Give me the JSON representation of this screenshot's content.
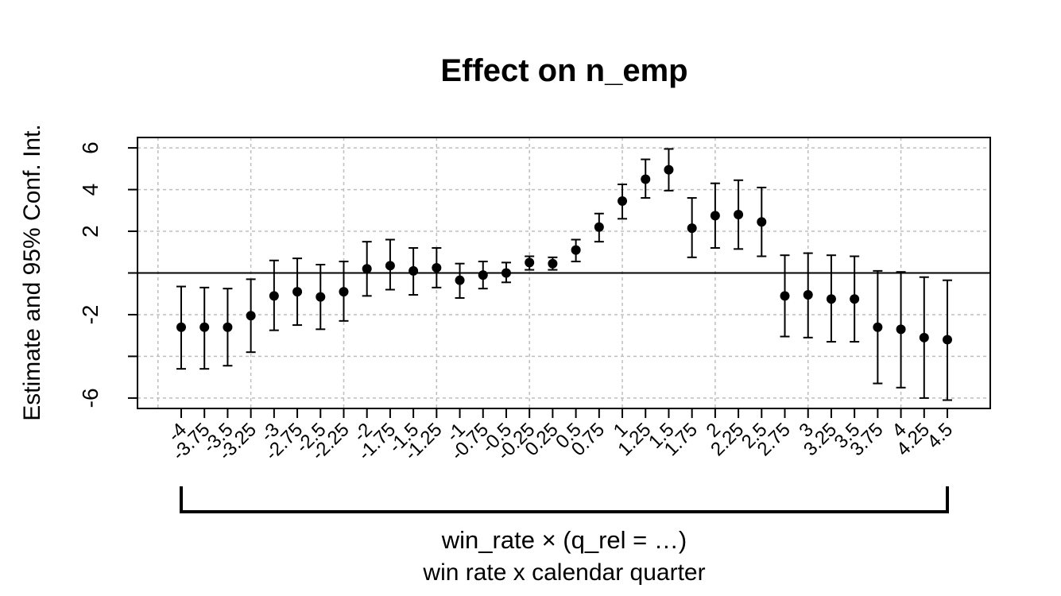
{
  "chart_data": {
    "type": "scatter",
    "title": "Effect on n_emp",
    "ylabel": "Estimate and 95% Conf. Int.",
    "xlabel_main": "win_rate × (q_rel = …)",
    "xlabel_sub": "win rate x calendar quarter",
    "ylim": [
      -6.5,
      6.5
    ],
    "yticks": [
      6,
      4,
      2,
      -2,
      -6
    ],
    "grid": true,
    "reference_line": 0,
    "categories": [
      "-4",
      "-3.75",
      "-3.5",
      "-3.25",
      "-3",
      "-2.75",
      "-2.5",
      "-2.25",
      "-2",
      "-1.75",
      "-1.5",
      "-1.25",
      "-1",
      "-0.75",
      "-0.5",
      "-0.25",
      "0.25",
      "0.5",
      "0.75",
      "1",
      "1.25",
      "1.5",
      "1.75",
      "2",
      "2.25",
      "2.5",
      "2.75",
      "3",
      "3.25",
      "3.5",
      "3.75",
      "4",
      "4.25",
      "4.5"
    ],
    "estimates": [
      -2.6,
      -2.6,
      -2.6,
      -2.05,
      -1.1,
      -0.9,
      -1.15,
      -0.9,
      0.2,
      0.35,
      0.1,
      0.25,
      -0.35,
      -0.1,
      0.0,
      0.5,
      0.45,
      1.1,
      2.2,
      3.45,
      4.5,
      4.95,
      2.15,
      2.75,
      2.8,
      2.45,
      -1.1,
      -1.05,
      -1.25,
      -1.25,
      -2.6,
      -2.7,
      -3.1,
      -3.2
    ],
    "ci_lower": [
      -4.6,
      -4.6,
      -4.45,
      -3.8,
      -2.75,
      -2.5,
      -2.7,
      -2.3,
      -1.1,
      -0.8,
      -1.05,
      -0.7,
      -1.2,
      -0.75,
      -0.45,
      0.15,
      0.15,
      0.55,
      1.5,
      2.6,
      3.6,
      3.95,
      0.75,
      1.2,
      1.15,
      0.8,
      -3.05,
      -3.1,
      -3.3,
      -3.3,
      -5.3,
      -5.5,
      -6.0,
      -6.1
    ],
    "ci_upper": [
      -0.65,
      -0.7,
      -0.75,
      -0.3,
      0.6,
      0.7,
      0.4,
      0.55,
      1.5,
      1.6,
      1.2,
      1.2,
      0.45,
      0.55,
      0.5,
      0.8,
      0.75,
      1.6,
      2.85,
      4.25,
      5.45,
      5.95,
      3.6,
      4.3,
      4.45,
      4.1,
      0.85,
      0.95,
      0.85,
      0.8,
      0.1,
      0.05,
      -0.2,
      -0.35
    ]
  }
}
